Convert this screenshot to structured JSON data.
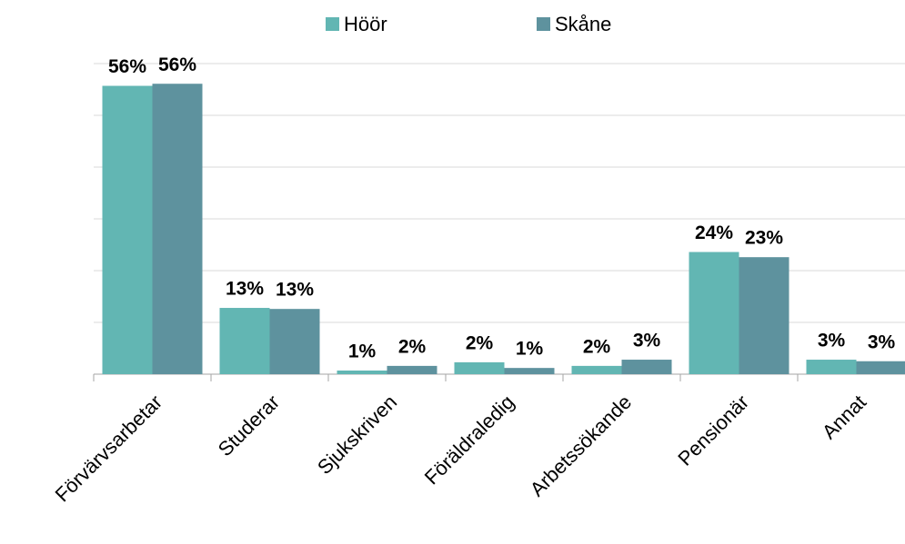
{
  "chart_data": {
    "type": "bar",
    "categories": [
      "Förvärvsarbetar",
      "Studerar",
      "Sjukskriven",
      "Föräldraledig",
      "Arbetssökande",
      "Pensionär",
      "Annat"
    ],
    "series": [
      {
        "name": "Höör",
        "color": "#62b6b3",
        "values": [
          55.7,
          12.8,
          0.7,
          2.3,
          1.6,
          23.6,
          2.8
        ],
        "value_labels": [
          "56%",
          "13%",
          "1%",
          "2%",
          "2%",
          "24%",
          "3%"
        ]
      },
      {
        "name": "Skåne",
        "color": "#5e929e",
        "values": [
          56.1,
          12.6,
          1.6,
          1.2,
          2.8,
          22.6,
          2.5
        ],
        "value_labels": [
          "56%",
          "13%",
          "2%",
          "1%",
          "3%",
          "23%",
          "3%"
        ]
      }
    ],
    "ylim": [
      0,
      60
    ],
    "yticks": [
      0,
      10,
      20,
      30,
      40,
      50,
      60
    ],
    "grid": true,
    "legend": "top"
  }
}
